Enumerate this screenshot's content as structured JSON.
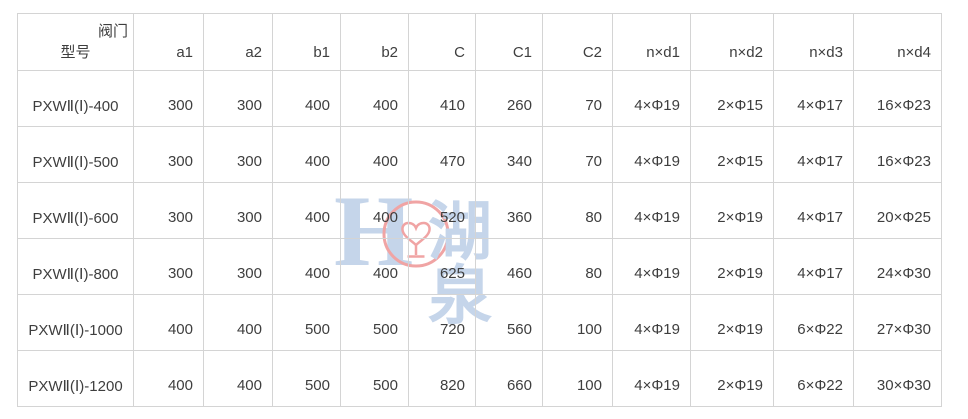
{
  "watermark": {
    "letter": "H",
    "brand": "湖泉"
  },
  "table": {
    "corner": {
      "line1": "阀门",
      "line2": "型号"
    },
    "columns": [
      "a1",
      "a2",
      "b1",
      "b2",
      "C",
      "C1",
      "C2",
      "n×d1",
      "n×d2",
      "n×d3",
      "n×d4"
    ],
    "rows": [
      {
        "model": "PXWⅡ(Ⅰ)-400",
        "values": [
          "300",
          "300",
          "400",
          "400",
          "410",
          "260",
          "70",
          "4×Φ19",
          "2×Φ15",
          "4×Φ17",
          "16×Φ23"
        ]
      },
      {
        "model": "PXWⅡ(Ⅰ)-500",
        "values": [
          "300",
          "300",
          "400",
          "400",
          "470",
          "340",
          "70",
          "4×Φ19",
          "2×Φ15",
          "4×Φ17",
          "16×Φ23"
        ]
      },
      {
        "model": "PXWⅡ(Ⅰ)-600",
        "values": [
          "300",
          "300",
          "400",
          "400",
          "520",
          "360",
          "80",
          "4×Φ19",
          "2×Φ19",
          "4×Φ17",
          "20×Φ25"
        ]
      },
      {
        "model": "PXWⅡ(Ⅰ)-800",
        "values": [
          "300",
          "300",
          "400",
          "400",
          "625",
          "460",
          "80",
          "4×Φ19",
          "2×Φ19",
          "4×Φ17",
          "24×Φ30"
        ]
      },
      {
        "model": "PXWⅡ(Ⅰ)-1000",
        "values": [
          "400",
          "400",
          "500",
          "500",
          "720",
          "560",
          "100",
          "4×Φ19",
          "2×Φ19",
          "6×Φ22",
          "27×Φ30"
        ]
      },
      {
        "model": "PXWⅡ(Ⅰ)-1200",
        "values": [
          "400",
          "400",
          "500",
          "500",
          "820",
          "660",
          "100",
          "4×Φ19",
          "2×Φ19",
          "6×Φ22",
          "30×Φ30"
        ]
      }
    ]
  },
  "colors": {
    "border": "#d4d4d4",
    "text": "#3e3e3e",
    "wmBlue": "#c5d5ea",
    "wmRed": "#f0a4a4"
  }
}
